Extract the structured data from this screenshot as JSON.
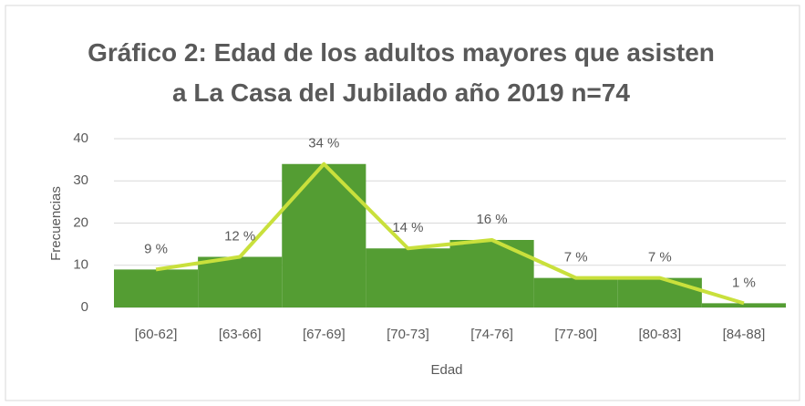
{
  "chart_data": {
    "type": "bar",
    "title": "Gráfico 2: Edad de los adultos mayores que asisten a La Casa del Jubilado año 2019 n=74",
    "x_label": "Edad",
    "y_label": "Frecuencias",
    "categories": [
      "[60-62]",
      "[63-66]",
      "[67-69]",
      "[70-73]",
      "[74-76]",
      "[77-80]",
      "[80-83]",
      "[84-88]"
    ],
    "values": [
      9,
      12,
      34,
      14,
      16,
      7,
      7,
      1
    ],
    "value_labels": [
      "9 %",
      "12 %",
      "34 %",
      "14 %",
      "16 %",
      "7 %",
      "7 %",
      "1 %"
    ],
    "color": "#549d33",
    "line_color": "#c9e03c",
    "ylim": [
      0,
      40
    ],
    "yticks": [
      0,
      10,
      20,
      30,
      40
    ],
    "grid": true
  }
}
